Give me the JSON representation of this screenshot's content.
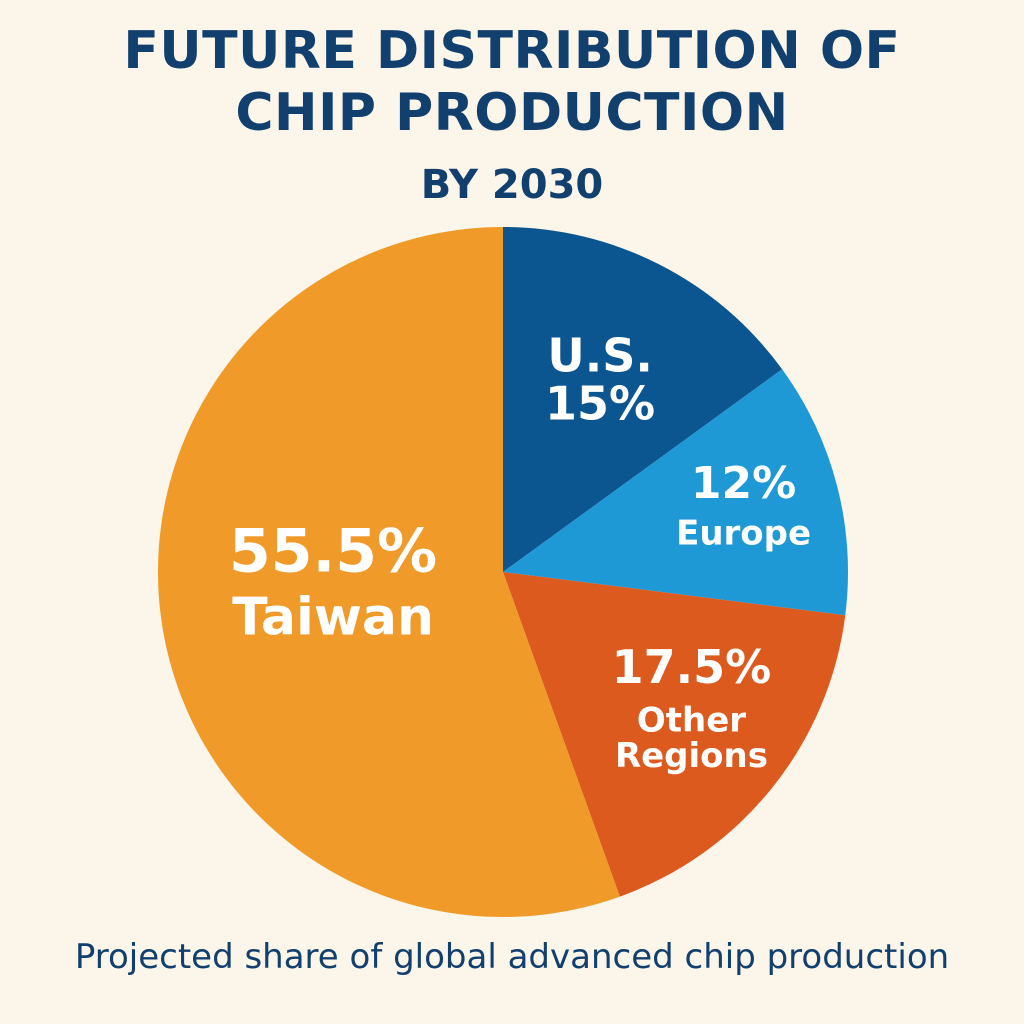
{
  "header": {
    "title_line1": "FUTURE DISTRIBUTION OF",
    "title_line2": "CHIP PRODUCTION",
    "subtitle": "BY 2030"
  },
  "caption": "Projected share of global advanced chip production",
  "colors": {
    "background": "#fbf5ea",
    "title": "#12406e",
    "us": "#0b5590",
    "europe": "#1f98d6",
    "other_regions": "#dd5a1f",
    "taiwan": "#f09a2a",
    "label_text": "#ffffff"
  },
  "chart_data": {
    "type": "pie",
    "title": "FUTURE DISTRIBUTION OF CHIP PRODUCTION",
    "subtitle": "BY 2030",
    "slices": [
      {
        "label": "U.S.",
        "value": 15,
        "value_text": "15%",
        "color": "#0b5590"
      },
      {
        "label": "Europe",
        "value": 12,
        "value_text": "12%",
        "color": "#1f98d6"
      },
      {
        "label": "Other Regions",
        "value": 17.5,
        "value_text": "17.5%",
        "color": "#dd5a1f"
      },
      {
        "label": "Taiwan",
        "value": 55.5,
        "value_text": "55.5%",
        "color": "#f09a2a"
      }
    ],
    "start": "12 o'clock",
    "direction": "clockwise",
    "legend": "none"
  }
}
